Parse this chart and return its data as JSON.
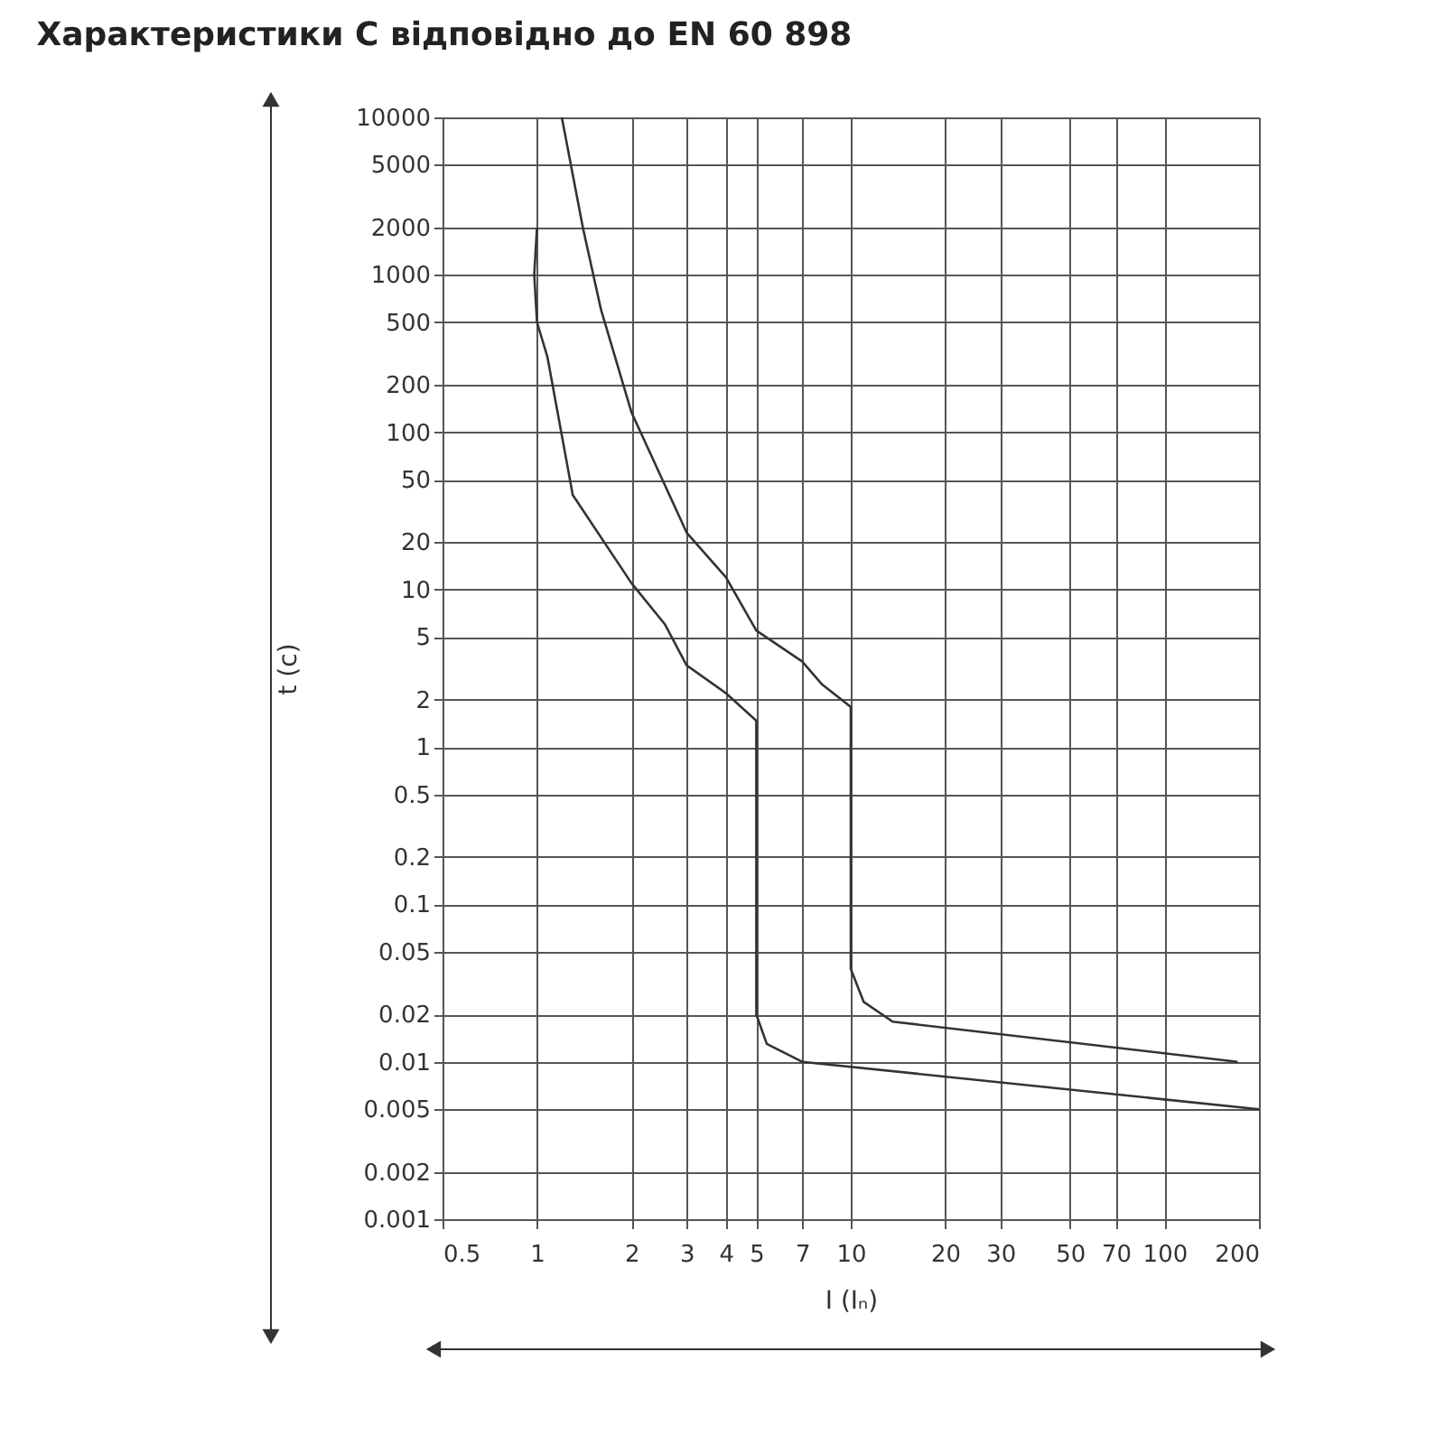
{
  "chart_data": {
    "type": "line",
    "title": "Характеристики C відповідно до EN 60 898",
    "xlabel": "I (Iₙ)",
    "ylabel": "t (c)",
    "log": "xy",
    "grid": true,
    "marker": "none",
    "line_style": "solid",
    "xlim": [
      0.5,
      200
    ],
    "xticks": [
      0.5,
      1,
      2,
      3,
      4,
      5,
      7,
      10,
      20,
      30,
      50,
      70,
      100,
      200
    ],
    "ylim": [
      0.001,
      10000
    ],
    "yticks": [
      0.001,
      0.002,
      0.005,
      0.01,
      0.02,
      0.05,
      0.1,
      0.2,
      0.5,
      1,
      2,
      5,
      10,
      20,
      50,
      100,
      200,
      500,
      1000,
      2000,
      5000,
      10000
    ],
    "series": [
      {
        "color": "#333333",
        "x": [
          1,
          0.98,
          1,
          1.08,
          1.3,
          2,
          2.56,
          3,
          4,
          5,
          5,
          5.4,
          7,
          200
        ],
        "values": [
          2000,
          1000,
          500,
          300,
          40,
          11,
          6,
          3.3,
          2.2,
          1.47,
          0.02,
          0.013,
          0.01,
          0.005
        ]
      },
      {
        "color": "#333333",
        "x": [
          1.2,
          1.4,
          1.6,
          2,
          3,
          4,
          5,
          7,
          8.1,
          10,
          10,
          11,
          13.6,
          171
        ],
        "values": [
          10000,
          2000,
          600,
          134,
          23,
          12,
          5.5,
          3.5,
          2.5,
          1.8,
          0.039,
          0.024,
          0.018,
          0.01
        ]
      }
    ]
  }
}
